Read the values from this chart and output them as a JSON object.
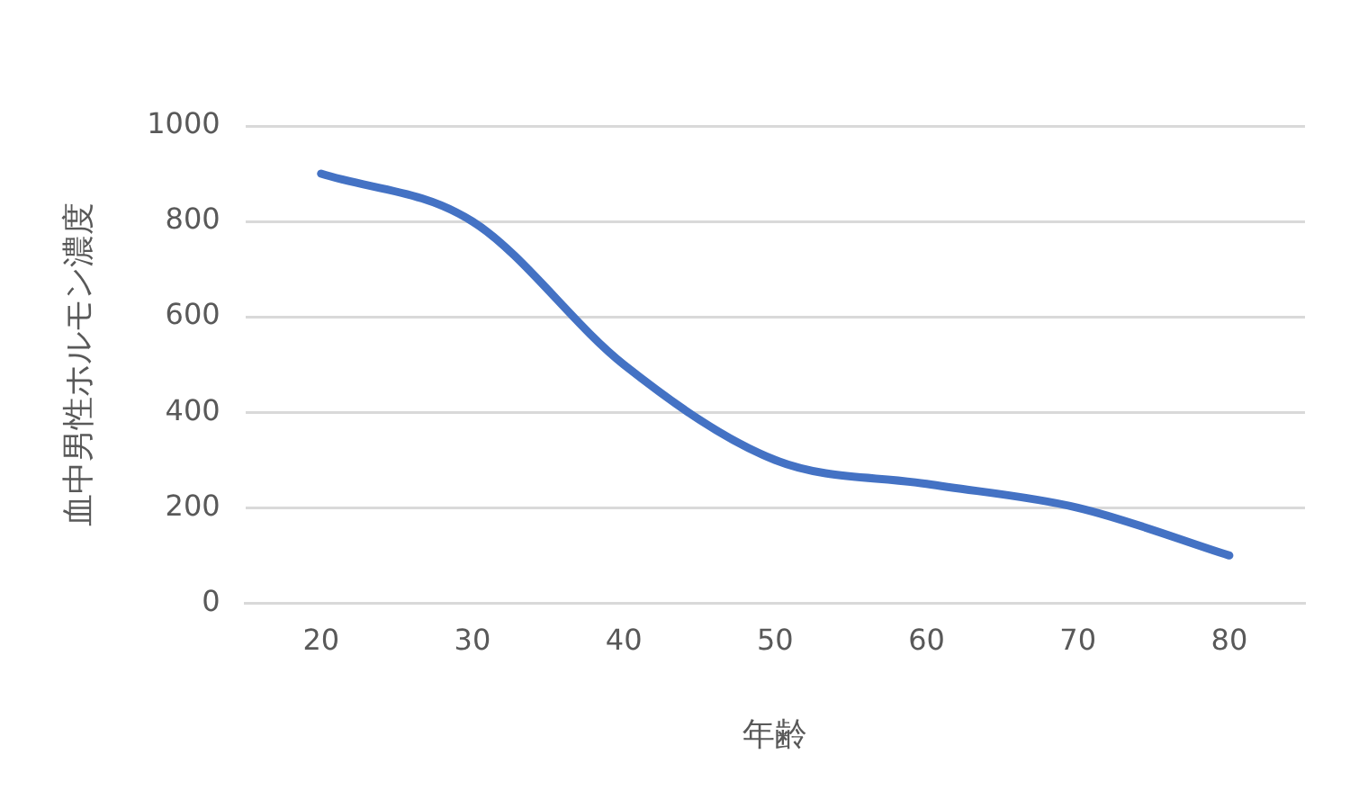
{
  "chart_data": {
    "type": "line",
    "xlabel": "年齢",
    "ylabel": "血中男性ホルモン濃度",
    "categories": [
      "20",
      "30",
      "40",
      "50",
      "60",
      "70",
      "80"
    ],
    "series": [
      {
        "color": "#4472c4",
        "values": [
          900,
          800,
          500,
          300,
          250,
          200,
          100
        ]
      }
    ],
    "ylim": [
      0,
      1000
    ],
    "yticks": [
      0,
      200,
      400,
      600,
      800,
      1000
    ],
    "grid": "y",
    "marker": "none",
    "legend": false
  }
}
